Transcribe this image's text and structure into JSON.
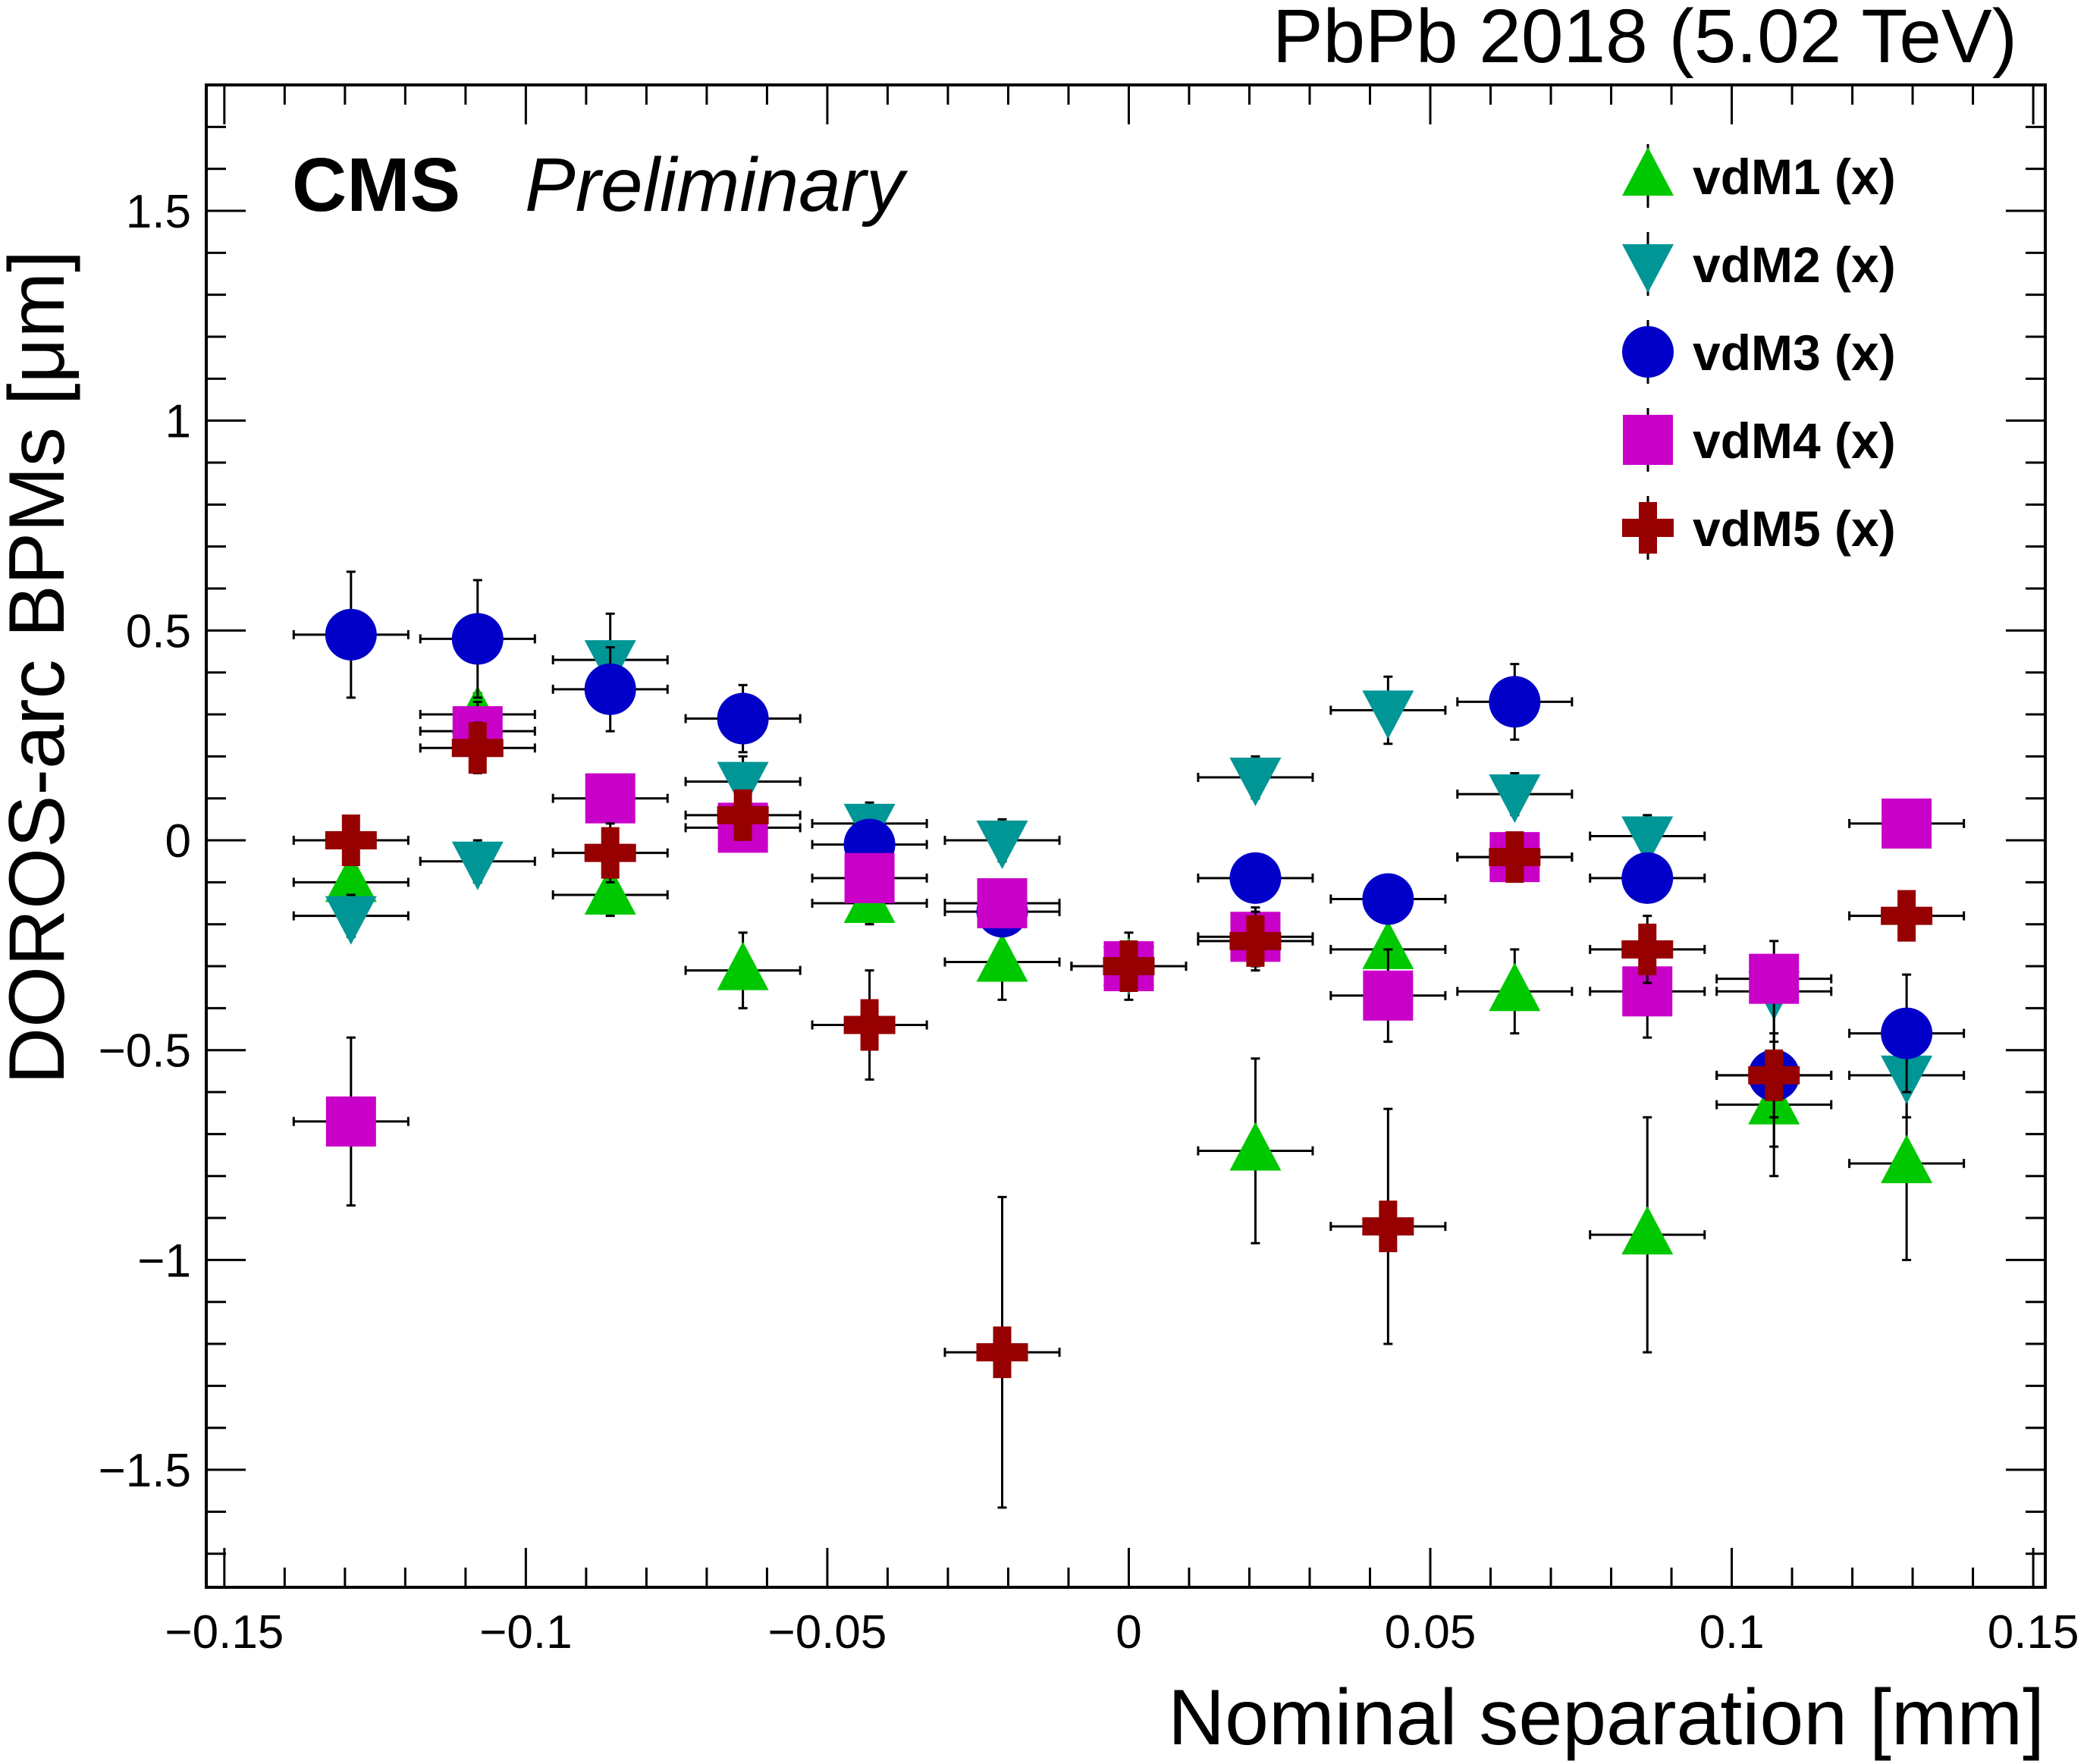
{
  "header": {
    "energy": "PbPb 2018 (5.02 TeV)",
    "experiment": "CMS",
    "status": "Preliminary"
  },
  "chart_data": {
    "type": "scatter",
    "xlabel": "Nominal separation [mm]",
    "ylabel": "DOROS-arc BPMs [μm]",
    "xlim": [
      -0.153,
      0.152
    ],
    "ylim": [
      -1.78,
      1.8
    ],
    "xticks": [
      -0.15,
      -0.1,
      -0.05,
      0,
      0.05,
      0.1,
      0.15
    ],
    "xtick_labels": [
      "−0.15",
      "−0.1",
      "−0.05",
      "0",
      "0.05",
      "0.1",
      "0.15"
    ],
    "yticks": [
      -1.5,
      -1,
      -0.5,
      0,
      0.5,
      1,
      1.5
    ],
    "ytick_labels": [
      "−1.5",
      "−1",
      "−0.5",
      "0",
      "0.5",
      "1",
      "1.5"
    ],
    "grid": false,
    "legend_position": "top-right",
    "x_error": 0.0095,
    "series": [
      {
        "name": "vdM1 (x)",
        "marker": "triangle-up",
        "color": "#00c800",
        "x": [
          -0.129,
          -0.108,
          -0.086,
          -0.064,
          -0.043,
          -0.021,
          0.0,
          0.021,
          0.043,
          0.064,
          0.086,
          0.107,
          0.129
        ],
        "y": [
          -0.1,
          0.3,
          -0.13,
          -0.31,
          -0.15,
          -0.29,
          -0.3,
          -0.74,
          -0.26,
          -0.36,
          -0.94,
          -0.63,
          -0.77
        ],
        "yerr": [
          0.05,
          0.05,
          0.05,
          0.09,
          0.05,
          0.09,
          0.08,
          0.22,
          0.09,
          0.1,
          0.28,
          0.1,
          0.23
        ]
      },
      {
        "name": "vdM2 (x)",
        "marker": "triangle-down",
        "color": "#009696",
        "x": [
          -0.129,
          -0.108,
          -0.086,
          -0.064,
          -0.043,
          -0.021,
          0.0,
          0.021,
          0.043,
          0.064,
          0.086,
          0.107,
          0.129
        ],
        "y": [
          -0.18,
          -0.05,
          0.43,
          0.14,
          0.04,
          0.0,
          -0.3,
          0.15,
          0.31,
          0.11,
          0.01,
          -0.36,
          -0.56
        ],
        "yerr": [
          0.05,
          0.05,
          0.11,
          0.06,
          0.05,
          0.05,
          0.05,
          0.05,
          0.08,
          0.05,
          0.05,
          0.12,
          0.1
        ]
      },
      {
        "name": "vdM3 (x)",
        "marker": "circle",
        "color": "#0000c8",
        "x": [
          -0.129,
          -0.108,
          -0.086,
          -0.064,
          -0.043,
          -0.021,
          0.0,
          0.021,
          0.043,
          0.064,
          0.086,
          0.107,
          0.129
        ],
        "y": [
          0.49,
          0.48,
          0.36,
          0.29,
          -0.01,
          -0.17,
          -0.3,
          -0.09,
          -0.14,
          0.33,
          -0.09,
          -0.56,
          -0.46
        ],
        "yerr": [
          0.15,
          0.14,
          0.1,
          0.08,
          0.05,
          0.05,
          0.05,
          0.05,
          0.05,
          0.09,
          0.05,
          0.24,
          0.14
        ]
      },
      {
        "name": "vdM4 (x)",
        "marker": "square",
        "color": "#c800c8",
        "x": [
          -0.129,
          -0.108,
          -0.086,
          -0.064,
          -0.043,
          -0.021,
          0.0,
          0.021,
          0.043,
          0.064,
          0.086,
          0.107,
          0.129
        ],
        "y": [
          -0.67,
          0.26,
          0.1,
          0.03,
          -0.09,
          -0.15,
          -0.3,
          -0.23,
          -0.37,
          -0.04,
          -0.36,
          -0.33,
          0.04
        ],
        "yerr": [
          0.2,
          0.07,
          0.05,
          0.05,
          0.05,
          0.05,
          0.05,
          0.07,
          0.11,
          0.05,
          0.11,
          0.05,
          0.05
        ]
      },
      {
        "name": "vdM5 (x)",
        "marker": "cross",
        "color": "#960000",
        "x": [
          -0.129,
          -0.108,
          -0.086,
          -0.064,
          -0.043,
          -0.021,
          0.0,
          0.021,
          0.043,
          0.064,
          0.086,
          0.107,
          0.129
        ],
        "y": [
          0.0,
          0.22,
          -0.03,
          0.06,
          -0.44,
          -1.22,
          -0.3,
          -0.24,
          -0.92,
          -0.04,
          -0.26,
          -0.56,
          -0.18
        ],
        "yerr": [
          0.05,
          0.06,
          0.07,
          0.05,
          0.13,
          0.37,
          0.05,
          0.07,
          0.28,
          0.05,
          0.08,
          0.1,
          0.05
        ]
      }
    ]
  }
}
